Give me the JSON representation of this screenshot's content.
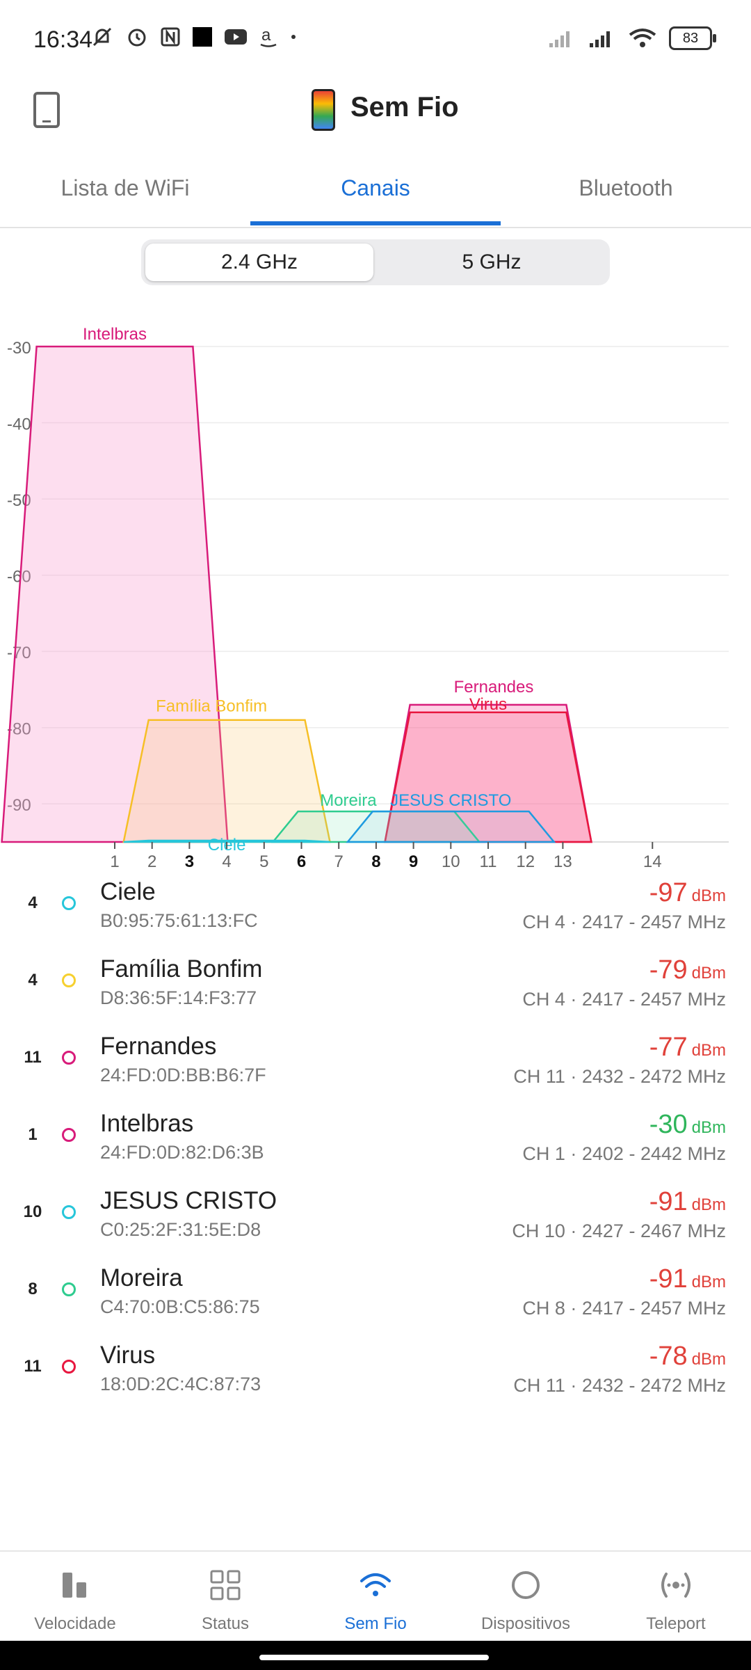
{
  "statusbar": {
    "time": "16:34",
    "battery": "83"
  },
  "app": {
    "title": "Sem Fio"
  },
  "tabs": [
    {
      "label": "Lista de WiFi",
      "active": false
    },
    {
      "label": "Canais",
      "active": true
    },
    {
      "label": "Bluetooth",
      "active": false
    }
  ],
  "band": {
    "option_a": "2.4 GHz",
    "option_b": "5 GHz",
    "selected": "2.4 GHz"
  },
  "chart_data": {
    "type": "area",
    "y_ticks": [
      "-30",
      "-40",
      "-50",
      "-60",
      "-70",
      "-80",
      "-90"
    ],
    "ylim": [
      -95,
      -30
    ],
    "x_ticks": [
      "1",
      "2",
      "3",
      "4",
      "5",
      "6",
      "7",
      "8",
      "9",
      "10",
      "11",
      "12",
      "13",
      "14"
    ],
    "x_bold_ticks": [
      "3",
      "6",
      "8",
      "9"
    ],
    "xlim": [
      -1.9,
      15.5
    ],
    "grid": true,
    "series": [
      {
        "name": "Intelbras",
        "channel": 1,
        "level": -30,
        "color": "#d81b7a",
        "fill": "rgba(250,160,210,0.35)"
      },
      {
        "name": "Família Bonfim",
        "channel": 4,
        "level": -79,
        "color": "#f6bf26",
        "fill": "rgba(253,205,120,0.25)"
      },
      {
        "name": "Fernandes",
        "channel": 11,
        "level": -77,
        "color": "#d81b7a",
        "fill": "rgba(250,120,180,0.35)"
      },
      {
        "name": "Virus",
        "channel": 11,
        "level": -78,
        "color": "#e8173f",
        "fill": "rgba(255,60,100,0.20)"
      },
      {
        "name": "Moreira",
        "channel": 8,
        "level": -91,
        "color": "#2ecc8f",
        "fill": "rgba(120,230,180,0.18)"
      },
      {
        "name": "JESUS CRISTO",
        "channel": 10,
        "level": -91,
        "color": "#1e9be0",
        "fill": "rgba(120,200,240,0.12)"
      },
      {
        "name": "Ciele",
        "channel": 4,
        "level": -97,
        "color": "#26c6da",
        "fill": "rgba(120,220,240,0.15)"
      }
    ]
  },
  "networks": [
    {
      "channel": "4",
      "name": "Ciele",
      "mac": "B0:95:75:61:13:FC",
      "signal": "-97",
      "unit": "dBm",
      "info": "CH 4 · 2417 - 2457 MHz",
      "color": "#26c6da",
      "good": false
    },
    {
      "channel": "4",
      "name": "Família Bonfim",
      "mac": "D8:36:5F:14:F3:77",
      "signal": "-79",
      "unit": "dBm",
      "info": "CH 4 · 2417 - 2457 MHz",
      "color": "#f6d02f",
      "good": false
    },
    {
      "channel": "11",
      "name": "Fernandes",
      "mac": "24:FD:0D:BB:B6:7F",
      "signal": "-77",
      "unit": "dBm",
      "info": "CH 11 · 2432 - 2472 MHz",
      "color": "#d81b7a",
      "good": false
    },
    {
      "channel": "1",
      "name": "Intelbras",
      "mac": "24:FD:0D:82:D6:3B",
      "signal": "-30",
      "unit": "dBm",
      "info": "CH 1 · 2402 - 2442 MHz",
      "color": "#d81b7a",
      "good": true
    },
    {
      "channel": "10",
      "name": "JESUS CRISTO",
      "mac": "C0:25:2F:31:5E:D8",
      "signal": "-91",
      "unit": "dBm",
      "info": "CH 10 · 2427 - 2467 MHz",
      "color": "#26c6da",
      "good": false
    },
    {
      "channel": "8",
      "name": "Moreira",
      "mac": "C4:70:0B:C5:86:75",
      "signal": "-91",
      "unit": "dBm",
      "info": "CH 8 · 2417 - 2457 MHz",
      "color": "#2ecc8f",
      "good": false
    },
    {
      "channel": "11",
      "name": "Virus",
      "mac": "18:0D:2C:4C:87:73",
      "signal": "-78",
      "unit": "dBm",
      "info": "CH 11 · 2432 - 2472 MHz",
      "color": "#e8173f",
      "good": false
    }
  ],
  "bottom_nav": [
    {
      "label": "Velocidade",
      "icon": "bar-chart-icon",
      "active": false
    },
    {
      "label": "Status",
      "icon": "grid-icon",
      "active": false
    },
    {
      "label": "Sem Fio",
      "icon": "wifi-icon",
      "active": true
    },
    {
      "label": "Dispositivos",
      "icon": "circle-icon",
      "active": false
    },
    {
      "label": "Teleport",
      "icon": "teleport-icon",
      "active": false
    }
  ]
}
